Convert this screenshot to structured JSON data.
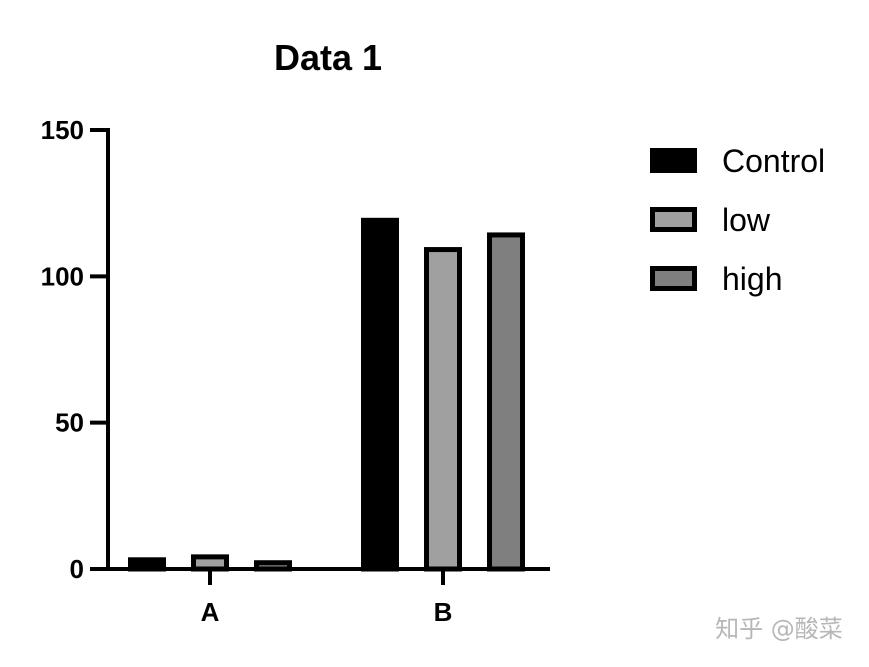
{
  "chart_data": {
    "type": "bar",
    "title": "Data 1",
    "xlabel": "",
    "ylabel": "",
    "categories": [
      "A",
      "B"
    ],
    "ylim": [
      0,
      150
    ],
    "yticks": [
      0,
      50,
      100,
      150
    ],
    "series": [
      {
        "name": "Control",
        "values": [
          4,
          120
        ],
        "color": "#000000"
      },
      {
        "name": "low",
        "values": [
          5,
          110
        ],
        "color": "#a0a0a0"
      },
      {
        "name": "high",
        "values": [
          3,
          115
        ],
        "color": "#7f7f7f"
      }
    ],
    "legend_position": "top-right",
    "grid": false
  },
  "watermark": "知乎 @酸菜"
}
